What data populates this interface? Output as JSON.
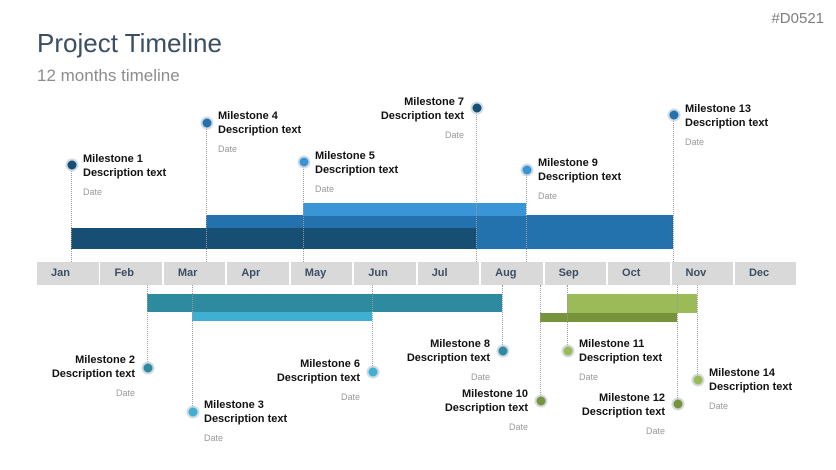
{
  "code": "#D0521",
  "title": "Project Timeline",
  "subtitle": "12 months timeline",
  "months": [
    "Jan",
    "Feb",
    "Mar",
    "Apr",
    "May",
    "Jun",
    "Jul",
    "Aug",
    "Sep",
    "Oct",
    "Nov",
    "Dec"
  ],
  "colors": {
    "navy": "#174e74",
    "blue": "#2372ae",
    "light_blue": "#3a95d6",
    "teal": "#2e8a9e",
    "light_teal": "#3fb0d2",
    "green": "#9bbb59",
    "dark_green": "#77933c"
  },
  "milestones": [
    {
      "name": "Milestone 1",
      "desc": "Description text",
      "date": "Date"
    },
    {
      "name": "Milestone 2",
      "desc": "Description text",
      "date": "Date"
    },
    {
      "name": "Milestone 3",
      "desc": "Description text",
      "date": "Date"
    },
    {
      "name": "Milestone 4",
      "desc": "Description text",
      "date": "Date"
    },
    {
      "name": "Milestone 5",
      "desc": "Description text",
      "date": "Date"
    },
    {
      "name": "Milestone 6",
      "desc": "Description text",
      "date": "Date"
    },
    {
      "name": "Milestone 7",
      "desc": "Description text",
      "date": "Date"
    },
    {
      "name": "Milestone 8",
      "desc": "Description text",
      "date": "Date"
    },
    {
      "name": "Milestone 9",
      "desc": "Description text",
      "date": "Date"
    },
    {
      "name": "Milestone 10",
      "desc": "Description text",
      "date": "Date"
    },
    {
      "name": "Milestone 11",
      "desc": "Description text",
      "date": "Date"
    },
    {
      "name": "Milestone 12",
      "desc": "Description text",
      "date": "Date"
    },
    {
      "name": "Milestone 13",
      "desc": "Description text",
      "date": "Date"
    },
    {
      "name": "Milestone 14",
      "desc": "Description text",
      "date": "Date"
    }
  ]
}
